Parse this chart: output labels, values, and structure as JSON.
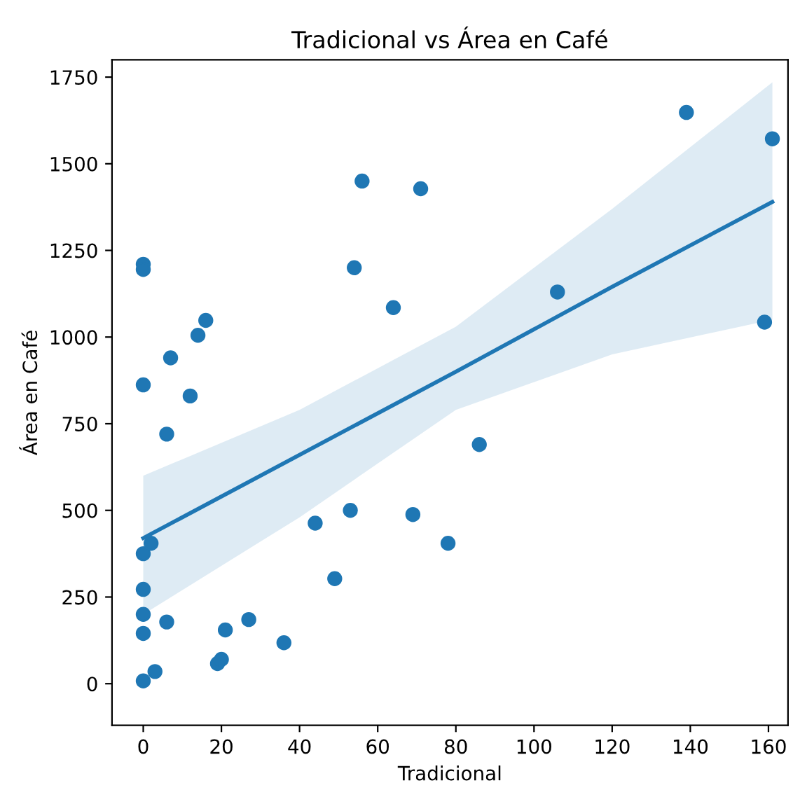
{
  "chart_data": {
    "type": "scatter",
    "title": "Tradicional vs Área en Café",
    "xlabel": "Tradicional",
    "ylabel": "Área en Café",
    "xlim": [
      -8,
      165
    ],
    "ylim": [
      -120,
      1800
    ],
    "xticks": [
      0,
      20,
      40,
      60,
      80,
      100,
      120,
      140,
      160
    ],
    "yticks": [
      0,
      250,
      500,
      750,
      1000,
      1250,
      1500,
      1750
    ],
    "grid": false,
    "series": [
      {
        "color": "#1f77b4",
        "marker": "circle",
        "x": [
          0,
          0,
          0,
          0,
          2,
          0,
          0,
          0,
          0,
          3,
          6,
          7,
          6,
          12,
          14,
          16,
          19,
          20,
          21,
          27,
          36,
          44,
          49,
          53,
          54,
          56,
          64,
          69,
          71,
          78,
          86,
          106,
          139,
          159,
          161
        ],
        "values": [
          1210,
          1195,
          862,
          375,
          405,
          272,
          200,
          145,
          8,
          35,
          720,
          940,
          178,
          830,
          1005,
          1048,
          58,
          70,
          155,
          185,
          118,
          463,
          303,
          500,
          1200,
          1450,
          1085,
          488,
          1428,
          405,
          690,
          1130,
          1648,
          1043,
          1572
        ]
      },
      {
        "type": "line",
        "color": "#1f77b4",
        "x": [
          0,
          40,
          80,
          120,
          161
        ],
        "values": [
          420,
          660,
          900,
          1145,
          1390
        ],
        "lower": [
          200,
          480,
          790,
          950,
          1050
        ],
        "upper": [
          600,
          790,
          1030,
          1370,
          1735
        ]
      }
    ]
  }
}
